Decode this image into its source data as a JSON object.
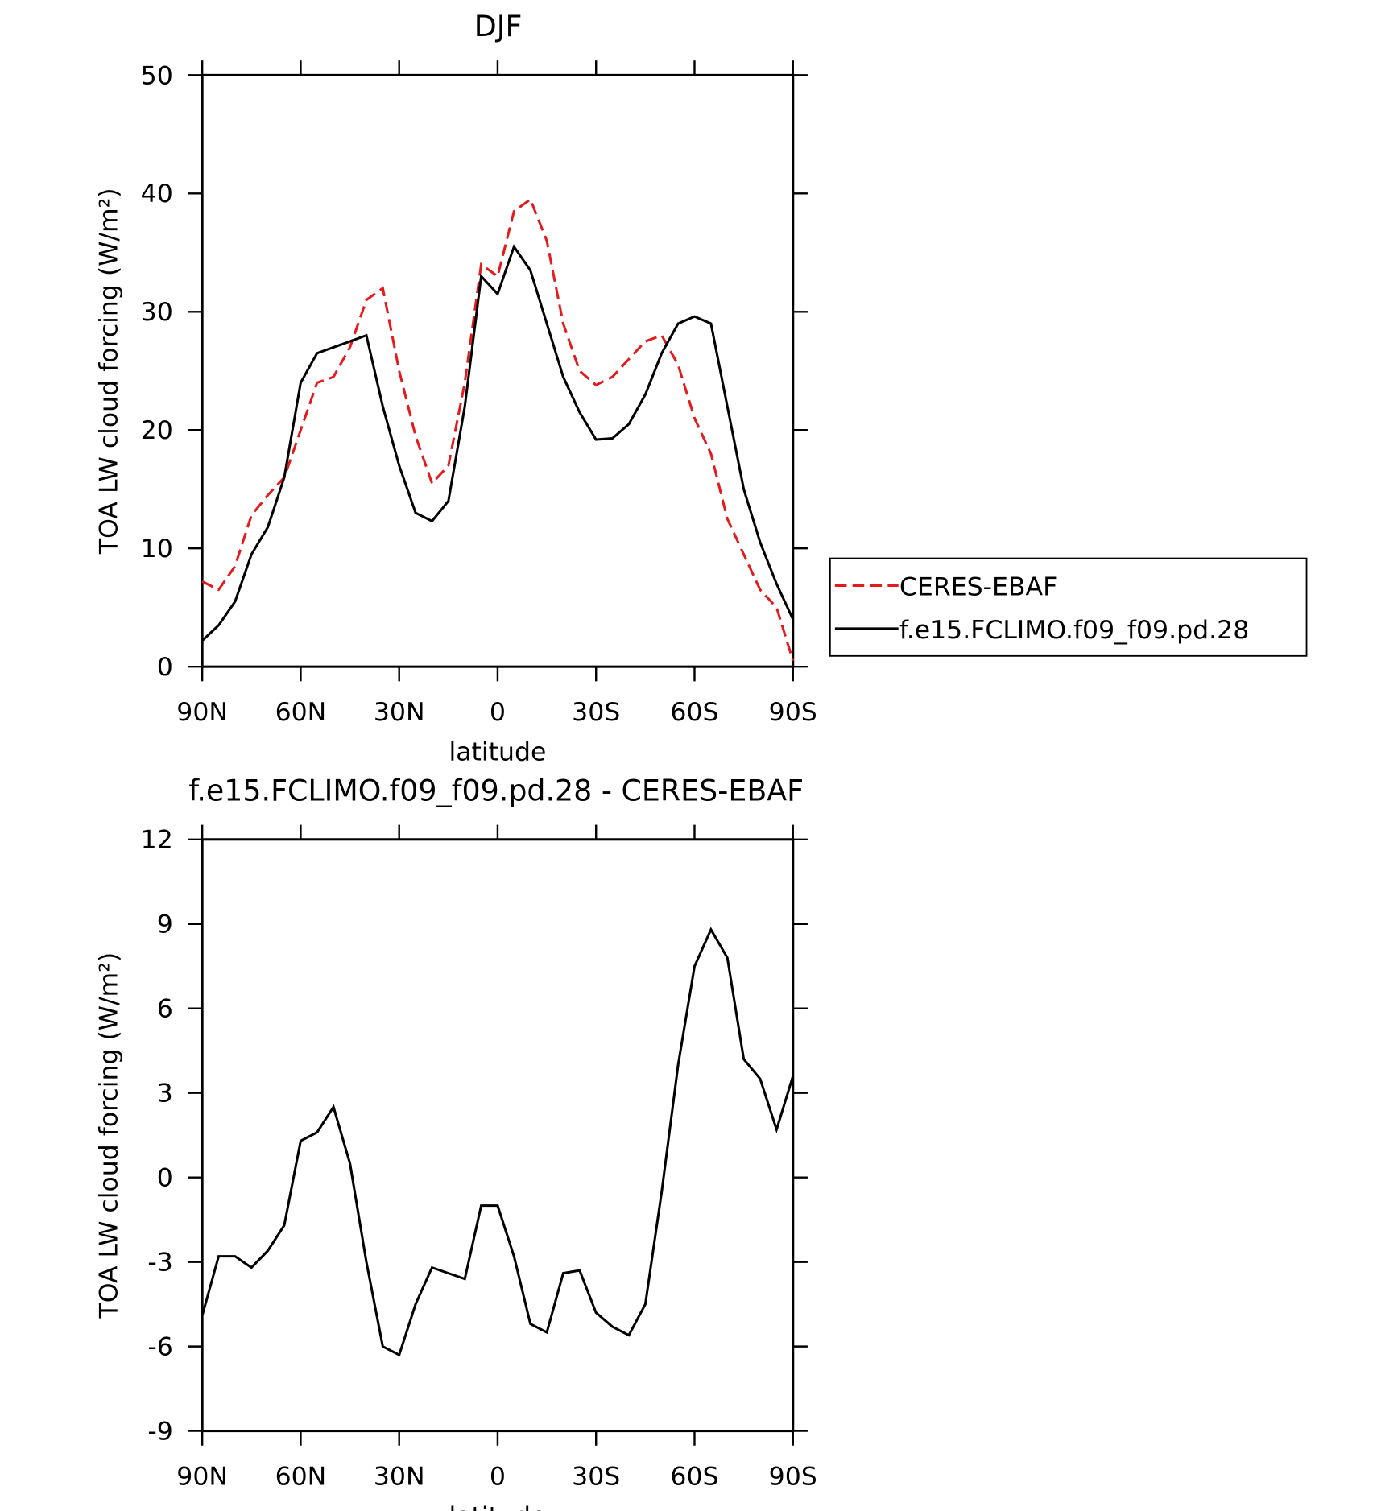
{
  "chart_data": [
    {
      "type": "line",
      "title": "DJF",
      "x_label": "latitude",
      "y_label": "TOA LW cloud forcing (W/m²)",
      "x": [
        90,
        85,
        80,
        75,
        70,
        65,
        60,
        55,
        50,
        45,
        40,
        35,
        30,
        25,
        20,
        15,
        10,
        5,
        0,
        -5,
        -10,
        -15,
        -20,
        -25,
        -30,
        -35,
        -40,
        -45,
        -50,
        -55,
        -60,
        -65,
        -70,
        -75,
        -80,
        -85,
        -90
      ],
      "xlim": [
        90,
        -90
      ],
      "xticks": [
        {
          "value": 90,
          "label": "90N"
        },
        {
          "value": 60,
          "label": "60N"
        },
        {
          "value": 30,
          "label": "30N"
        },
        0,
        {
          "value": -30,
          "label": "30S"
        },
        {
          "value": -60,
          "label": "60S"
        },
        {
          "value": -90,
          "label": "90S"
        }
      ],
      "ylim": [
        0,
        50
      ],
      "yticks": [
        0,
        10,
        20,
        30,
        40,
        50
      ],
      "legend": "right",
      "series": [
        {
          "name": "CERES-EBAF",
          "color": "#e41a1c",
          "style": "dashed",
          "values": [
            7.2,
            6.5,
            8.5,
            12.8,
            14.5,
            16,
            20,
            24,
            24.5,
            27,
            31,
            32,
            25,
            19.5,
            15.5,
            17,
            24,
            34,
            33,
            38.5,
            39.5,
            36,
            29,
            25,
            23.8,
            24.5,
            26,
            27.5,
            28,
            25.5,
            21,
            18,
            12.5,
            9.5,
            6.5,
            5,
            0.5
          ]
        },
        {
          "name": "f.e15.FCLIMO.f09_f09.pd.28",
          "color": "#000000",
          "style": "solid",
          "values": [
            2.2,
            3.5,
            5.5,
            9.5,
            11.8,
            16,
            24,
            26.5,
            27,
            27.5,
            28,
            22,
            17,
            13,
            12.3,
            14,
            22,
            33,
            31.5,
            35.5,
            33.5,
            29,
            24.5,
            21.5,
            19.2,
            19.3,
            20.5,
            23,
            26.5,
            29,
            29.6,
            29,
            22,
            15,
            10.5,
            7,
            4
          ]
        }
      ]
    },
    {
      "type": "line",
      "title": "f.e15.FCLIMO.f09_f09.pd.28 - CERES-EBAF",
      "x_label": "latitude",
      "y_label": "TOA LW cloud forcing (W/m²)",
      "x": [
        90,
        85,
        80,
        75,
        70,
        65,
        60,
        55,
        50,
        45,
        40,
        35,
        30,
        25,
        20,
        15,
        10,
        5,
        0,
        -5,
        -10,
        -15,
        -20,
        -25,
        -30,
        -35,
        -40,
        -45,
        -50,
        -55,
        -60,
        -65,
        -70,
        -75,
        -80,
        -85,
        -90
      ],
      "xlim": [
        90,
        -90
      ],
      "xticks": [
        {
          "value": 90,
          "label": "90N"
        },
        {
          "value": 60,
          "label": "60N"
        },
        {
          "value": 30,
          "label": "30N"
        },
        0,
        {
          "value": -30,
          "label": "30S"
        },
        {
          "value": -60,
          "label": "60S"
        },
        {
          "value": -90,
          "label": "90S"
        }
      ],
      "ylim": [
        -9,
        12
      ],
      "yticks": [
        -9,
        -6,
        -3,
        0,
        3,
        6,
        9,
        12
      ],
      "series": [
        {
          "color": "#000000",
          "style": "solid",
          "values": [
            -4.9,
            -2.8,
            -2.8,
            -3.2,
            -2.6,
            -1.7,
            1.3,
            1.6,
            2.5,
            0.5,
            -3,
            -6,
            -6.3,
            -4.5,
            -3.2,
            -3.4,
            -3.6,
            -1,
            -1,
            -2.8,
            -5.2,
            -5.5,
            -3.4,
            -3.3,
            -4.8,
            -5.3,
            -5.6,
            -4.5,
            -0.5,
            4,
            7.5,
            8.8,
            7.8,
            4.2,
            3.5,
            1.7,
            3.6
          ]
        }
      ]
    }
  ]
}
